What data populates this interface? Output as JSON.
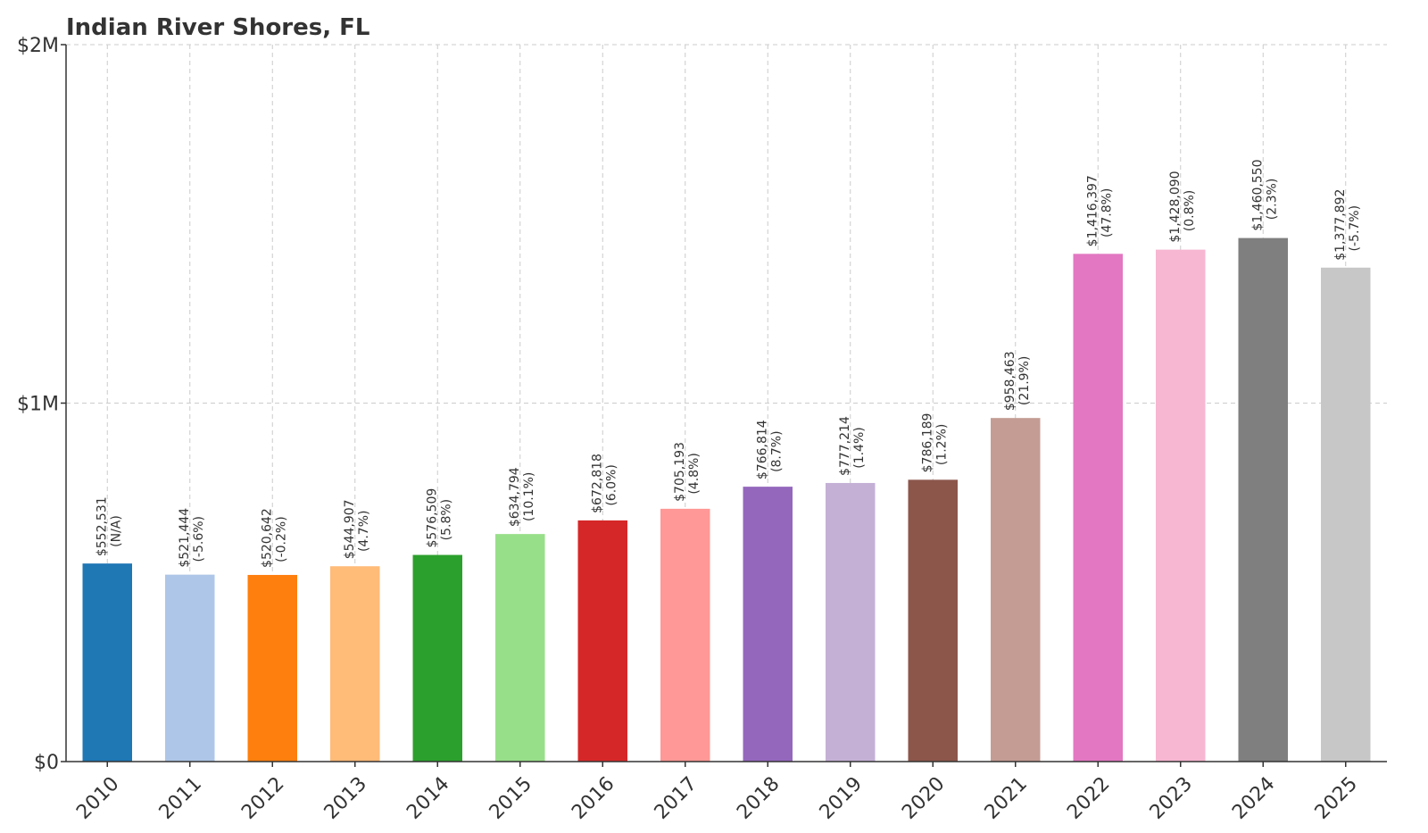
{
  "chart_data": {
    "type": "bar",
    "title": "Indian River Shores, FL",
    "xlabel": "",
    "ylabel": "",
    "ylim": [
      0,
      2000000
    ],
    "yticks": [
      {
        "value": 0,
        "label": "$0"
      },
      {
        "value": 1000000,
        "label": "$1M"
      },
      {
        "value": 2000000,
        "label": "$2M"
      }
    ],
    "grid": true,
    "categories": [
      "2010",
      "2011",
      "2012",
      "2013",
      "2014",
      "2015",
      "2016",
      "2017",
      "2018",
      "2019",
      "2020",
      "2021",
      "2022",
      "2023",
      "2024",
      "2025"
    ],
    "values": [
      552531,
      521444,
      520642,
      544907,
      576509,
      634794,
      672818,
      705193,
      766814,
      777214,
      786189,
      958463,
      1416397,
      1428090,
      1460550,
      1377892
    ],
    "value_labels": [
      "$552,531",
      "$521,444",
      "$520,642",
      "$544,907",
      "$576,509",
      "$634,794",
      "$672,818",
      "$705,193",
      "$766,814",
      "$777,214",
      "$786,189",
      "$958,463",
      "$1,416,397",
      "$1,428,090",
      "$1,460,550",
      "$1,377,892"
    ],
    "change_labels": [
      "(N/A)",
      "(-5.6%)",
      "(-0.2%)",
      "(4.7%)",
      "(5.8%)",
      "(10.1%)",
      "(6.0%)",
      "(4.8%)",
      "(8.7%)",
      "(1.4%)",
      "(1.2%)",
      "(21.9%)",
      "(47.8%)",
      "(0.8%)",
      "(2.3%)",
      "(-5.7%)"
    ],
    "colors": [
      "#1f77b4",
      "#aec7e8",
      "#ff7f0e",
      "#ffbb78",
      "#2ca02c",
      "#98df8a",
      "#d62728",
      "#ff9896",
      "#9467bd",
      "#c5b0d5",
      "#8c564b",
      "#c49c94",
      "#e377c2",
      "#f7b6d2",
      "#7f7f7f",
      "#c7c7c7"
    ]
  }
}
